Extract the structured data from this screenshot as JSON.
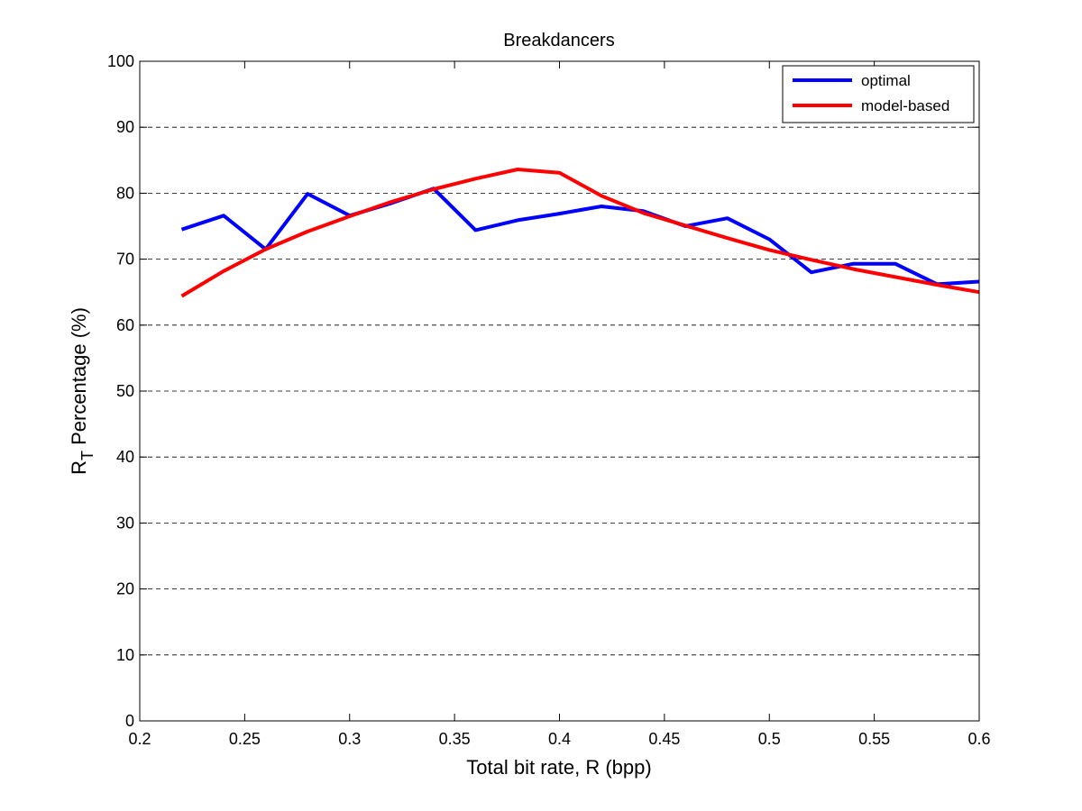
{
  "chart_data": {
    "type": "line",
    "title": "Breakdancers",
    "xlabel": "Total bit rate, R (bpp)",
    "ylabel_main": "R",
    "ylabel_sub": "T",
    "ylabel_rest": " Percentage (%)",
    "xlim": [
      0.2,
      0.6
    ],
    "ylim": [
      0,
      100
    ],
    "xticks": [
      0.2,
      0.25,
      0.3,
      0.35,
      0.4,
      0.45,
      0.5,
      0.55,
      0.6
    ],
    "xtick_labels": [
      "0.2",
      "0.25",
      "0.3",
      "0.35",
      "0.4",
      "0.45",
      "0.5",
      "0.55",
      "0.6"
    ],
    "yticks": [
      0,
      10,
      20,
      30,
      40,
      50,
      60,
      70,
      80,
      90,
      100
    ],
    "ytick_labels": [
      "0",
      "10",
      "20",
      "30",
      "40",
      "50",
      "60",
      "70",
      "80",
      "90",
      "100"
    ],
    "grid": "horizontal dashed",
    "legend_position": "top-right",
    "series": [
      {
        "name": "optimal",
        "color": "#0000ff",
        "x": [
          0.22,
          0.24,
          0.26,
          0.28,
          0.3,
          0.32,
          0.34,
          0.36,
          0.38,
          0.4,
          0.42,
          0.44,
          0.46,
          0.48,
          0.5,
          0.52,
          0.54,
          0.56,
          0.58,
          0.6
        ],
        "y": [
          74.5,
          76.6,
          71.5,
          79.9,
          76.6,
          78.5,
          80.7,
          74.4,
          75.9,
          76.9,
          78.0,
          77.3,
          75.0,
          76.2,
          73.0,
          68.0,
          69.3,
          69.3,
          66.2,
          66.6
        ]
      },
      {
        "name": "model-based",
        "color": "#ff0000",
        "x": [
          0.22,
          0.24,
          0.26,
          0.28,
          0.3,
          0.32,
          0.34,
          0.36,
          0.38,
          0.4,
          0.42,
          0.44,
          0.46,
          0.48,
          0.5,
          0.52,
          0.54,
          0.56,
          0.58,
          0.6
        ],
        "y": [
          64.4,
          68.2,
          71.5,
          74.2,
          76.5,
          78.7,
          80.6,
          82.2,
          83.6,
          83.1,
          79.6,
          77.0,
          75.1,
          73.2,
          71.4,
          69.9,
          68.5,
          67.3,
          66.1,
          65.0
        ]
      }
    ]
  }
}
